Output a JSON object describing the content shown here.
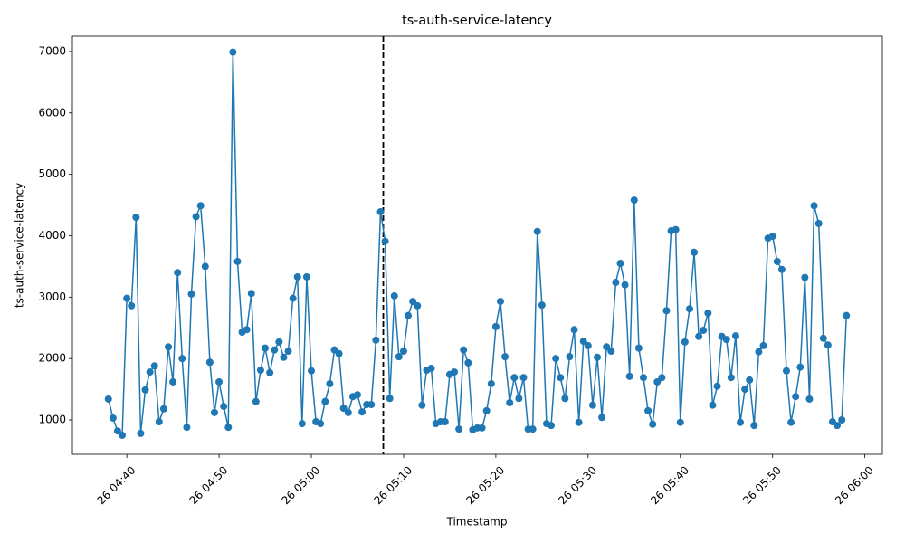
{
  "chart_data": {
    "type": "line",
    "title": "ts-auth-service-latency",
    "x_label": "Timestamp",
    "y_label": "ts-auth-service-latency",
    "x": [
      "26 04:38:00",
      "26 04:38:30",
      "26 04:39:00",
      "26 04:39:30",
      "26 04:40:00",
      "26 04:40:30",
      "26 04:41:00",
      "26 04:41:30",
      "26 04:42:00",
      "26 04:42:30",
      "26 04:43:00",
      "26 04:43:30",
      "26 04:44:00",
      "26 04:44:30",
      "26 04:45:00",
      "26 04:45:30",
      "26 04:46:00",
      "26 04:46:30",
      "26 04:47:00",
      "26 04:47:30",
      "26 04:48:00",
      "26 04:48:30",
      "26 04:49:00",
      "26 04:49:30",
      "26 04:50:00",
      "26 04:50:30",
      "26 04:51:00",
      "26 04:51:30",
      "26 04:52:00",
      "26 04:52:30",
      "26 04:53:00",
      "26 04:53:30",
      "26 04:54:00",
      "26 04:54:30",
      "26 04:55:00",
      "26 04:55:30",
      "26 04:56:00",
      "26 04:56:30",
      "26 04:57:00",
      "26 04:57:30",
      "26 04:58:00",
      "26 04:58:30",
      "26 04:59:00",
      "26 04:59:30",
      "26 05:00:00",
      "26 05:00:30",
      "26 05:01:00",
      "26 05:01:30",
      "26 05:02:00",
      "26 05:02:30",
      "26 05:03:00",
      "26 05:03:30",
      "26 05:04:00",
      "26 05:04:30",
      "26 05:05:00",
      "26 05:05:30",
      "26 05:06:00",
      "26 05:06:30",
      "26 05:07:00",
      "26 05:07:30",
      "26 05:08:00",
      "26 05:08:30",
      "26 05:09:00",
      "26 05:09:30",
      "26 05:10:00",
      "26 05:10:30",
      "26 05:11:00",
      "26 05:11:30",
      "26 05:12:00",
      "26 05:12:30",
      "26 05:13:00",
      "26 05:13:30",
      "26 05:14:00",
      "26 05:14:30",
      "26 05:15:00",
      "26 05:15:30",
      "26 05:16:00",
      "26 05:16:30",
      "26 05:17:00",
      "26 05:17:30",
      "26 05:18:00",
      "26 05:18:30",
      "26 05:19:00",
      "26 05:19:30",
      "26 05:20:00",
      "26 05:20:30",
      "26 05:21:00",
      "26 05:21:30",
      "26 05:22:00",
      "26 05:22:30",
      "26 05:23:00",
      "26 05:23:30",
      "26 05:24:00",
      "26 05:24:30",
      "26 05:25:00",
      "26 05:25:30",
      "26 05:26:00",
      "26 05:26:30",
      "26 05:27:00",
      "26 05:27:30",
      "26 05:28:00",
      "26 05:28:30",
      "26 05:29:00",
      "26 05:29:30",
      "26 05:30:00",
      "26 05:30:30",
      "26 05:31:00",
      "26 05:31:30",
      "26 05:32:00",
      "26 05:32:30",
      "26 05:33:00",
      "26 05:33:30",
      "26 05:34:00",
      "26 05:34:30",
      "26 05:35:00",
      "26 05:35:30",
      "26 05:36:00",
      "26 05:36:30",
      "26 05:37:00",
      "26 05:37:30",
      "26 05:38:00",
      "26 05:38:30",
      "26 05:39:00",
      "26 05:39:30",
      "26 05:40:00",
      "26 05:40:30",
      "26 05:41:00",
      "26 05:41:30",
      "26 05:42:00",
      "26 05:42:30",
      "26 05:43:00",
      "26 05:43:30",
      "26 05:44:00",
      "26 05:44:30",
      "26 05:45:00",
      "26 05:45:30",
      "26 05:46:00",
      "26 05:46:30",
      "26 05:47:00",
      "26 05:47:30",
      "26 05:48:00",
      "26 05:48:30",
      "26 05:49:00",
      "26 05:49:30",
      "26 05:50:00",
      "26 05:50:30",
      "26 05:51:00",
      "26 05:51:30",
      "26 05:52:00",
      "26 05:52:30",
      "26 05:53:00",
      "26 05:53:30",
      "26 05:54:00",
      "26 05:54:30",
      "26 05:55:00",
      "26 05:55:30",
      "26 05:56:00",
      "26 05:56:30",
      "26 05:57:00",
      "26 05:57:30",
      "26 05:58:00"
    ],
    "values": [
      1340,
      1030,
      820,
      750,
      2980,
      2860,
      4300,
      780,
      1490,
      1780,
      1880,
      970,
      1180,
      2190,
      1620,
      3400,
      2000,
      880,
      3050,
      4310,
      4490,
      3500,
      1940,
      1120,
      1620,
      1220,
      880,
      6990,
      3580,
      2430,
      2470,
      3060,
      1300,
      1810,
      2170,
      1770,
      2140,
      2270,
      2020,
      2120,
      2980,
      3330,
      940,
      3330,
      1800,
      970,
      940,
      1300,
      1590,
      2140,
      2080,
      1190,
      1120,
      1380,
      1410,
      1130,
      1250,
      1250,
      2300,
      4390,
      3910,
      1350,
      3020,
      2030,
      2120,
      2700,
      2930,
      2860,
      1240,
      1810,
      1840,
      940,
      970,
      970,
      1740,
      1780,
      850,
      2140,
      1930,
      840,
      870,
      870,
      1150,
      1590,
      2520,
      2930,
      2030,
      1280,
      1690,
      1350,
      1690,
      850,
      850,
      4070,
      2870,
      940,
      910,
      2000,
      1690,
      1350,
      2030,
      2470,
      960,
      2280,
      2210,
      1240,
      2020,
      1040,
      2190,
      2120,
      3240,
      3550,
      3200,
      1710,
      4580,
      2170,
      1690,
      1150,
      930,
      1620,
      1690,
      2780,
      4080,
      4100,
      960,
      2270,
      2810,
      3730,
      2360,
      2460,
      2740,
      1240,
      1550,
      2360,
      2310,
      1690,
      2370,
      960,
      1500,
      1650,
      910,
      2110,
      2210,
      3960,
      3990,
      3580,
      3450,
      1800,
      960,
      1380,
      1860,
      3320,
      1340,
      4490,
      4200,
      2330,
      2220,
      970,
      910,
      1000,
      2700
    ],
    "color": "#1f77b4",
    "marker": "circle",
    "xlim": [
      "26 04:34:06",
      "26 06:01:54"
    ],
    "xticks": [
      "26 04:40",
      "26 04:50",
      "26 05:00",
      "26 05:10",
      "26 05:20",
      "26 05:30",
      "26 05:40",
      "26 05:50",
      "26 06:00"
    ],
    "ylim": [
      440,
      7250
    ],
    "yticks": [
      1000,
      2000,
      3000,
      4000,
      5000,
      6000,
      7000
    ],
    "vline_x": "26 05:07:48",
    "vline_color": "#000000",
    "vline_style": "dashed",
    "grid": false
  }
}
